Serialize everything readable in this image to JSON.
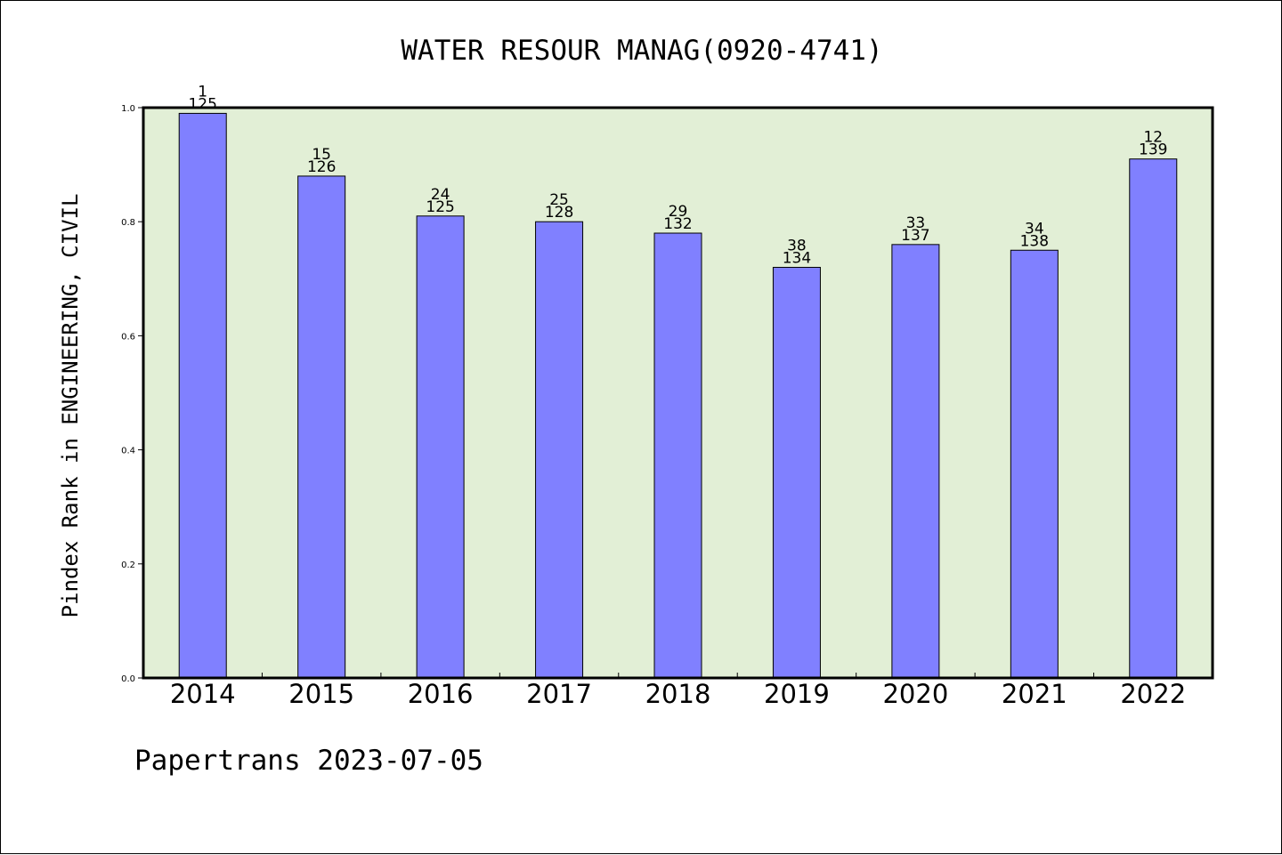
{
  "chart_data": {
    "type": "bar",
    "title": "WATER RESOUR MANAG(0920-4741)",
    "xlabel": "",
    "ylabel": "Pindex Rank in ENGINEERING, CIVIL",
    "ylim": [
      0,
      1.0
    ],
    "yticks": [
      "0.0",
      "0.2",
      "0.4",
      "0.6",
      "0.8",
      "1.0"
    ],
    "categories": [
      "2014",
      "2015",
      "2016",
      "2017",
      "2018",
      "2019",
      "2020",
      "2021",
      "2022"
    ],
    "values": [
      0.99,
      0.88,
      0.81,
      0.8,
      0.78,
      0.72,
      0.76,
      0.75,
      0.91
    ],
    "rank_labels": [
      "1",
      "15",
      "24",
      "25",
      "29",
      "38",
      "33",
      "34",
      "12"
    ],
    "total_labels": [
      "125",
      "126",
      "125",
      "128",
      "132",
      "134",
      "137",
      "138",
      "139"
    ],
    "grid": false,
    "legend": "none"
  },
  "footer": "Papertrans 2023-07-05",
  "colors": {
    "plot_background": "#e2efd6",
    "bar_fill": "#8080ff",
    "bar_stroke": "#000000",
    "axis": "#000000"
  }
}
